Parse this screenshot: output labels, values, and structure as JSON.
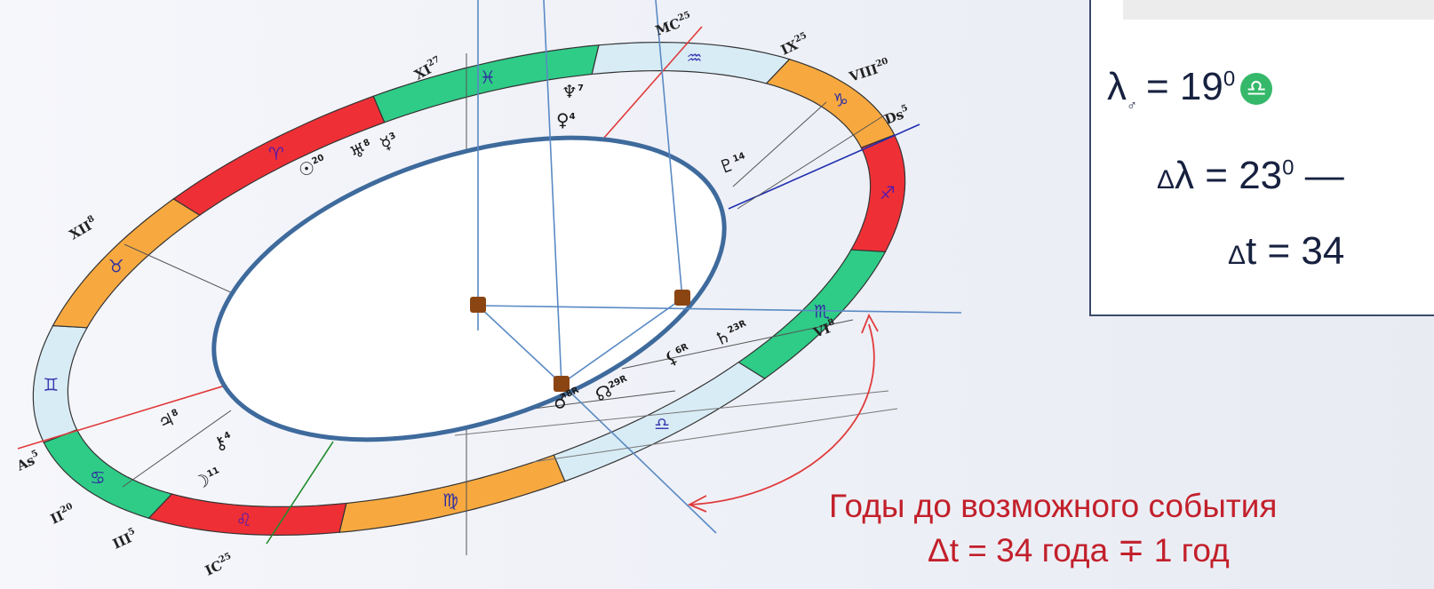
{
  "zodiac_signs": [
    {
      "name": "pisces",
      "glyph": "♓",
      "color": "#2ecc87"
    },
    {
      "name": "aquarius",
      "glyph": "♒",
      "color": "#d8ecf6"
    },
    {
      "name": "capricorn",
      "glyph": "♑",
      "color": "#f7a940"
    },
    {
      "name": "sagittarius",
      "glyph": "♐",
      "color": "#ee3036"
    },
    {
      "name": "scorpio",
      "glyph": "♏",
      "color": "#2ecc87"
    },
    {
      "name": "libra",
      "glyph": "♎",
      "color": "#d8ecf6"
    },
    {
      "name": "virgo",
      "glyph": "♍",
      "color": "#f7a940"
    },
    {
      "name": "leo",
      "glyph": "♌",
      "color": "#ee3036"
    },
    {
      "name": "cancer",
      "glyph": "♋",
      "color": "#2ecc87"
    },
    {
      "name": "gemini",
      "glyph": "♊",
      "color": "#d8ecf6"
    },
    {
      "name": "taurus",
      "glyph": "♉",
      "color": "#f7a940"
    },
    {
      "name": "aries",
      "glyph": "♈",
      "color": "#ee3036"
    }
  ],
  "house_labels": [
    {
      "name": "mc",
      "text": "MC",
      "sup": "25"
    },
    {
      "name": "ix",
      "text": "IX",
      "sup": "25"
    },
    {
      "name": "viii",
      "text": "VIII",
      "sup": "20"
    },
    {
      "name": "ds",
      "text": "Ds",
      "sup": "5"
    },
    {
      "name": "vi",
      "text": "VI",
      "sup": "8"
    },
    {
      "name": "xi",
      "text": "XI",
      "sup": "27"
    },
    {
      "name": "xii",
      "text": "XII",
      "sup": "8"
    },
    {
      "name": "as",
      "text": "As",
      "sup": "5"
    },
    {
      "name": "ii",
      "text": "II",
      "sup": "20"
    },
    {
      "name": "iii",
      "text": "III",
      "sup": "5"
    },
    {
      "name": "ic",
      "text": "IC",
      "sup": "25"
    }
  ],
  "planets": [
    {
      "name": "neptune",
      "glyph": "♆",
      "sup": "7"
    },
    {
      "name": "venus",
      "glyph": "♀",
      "sup": "4"
    },
    {
      "name": "pluto",
      "glyph": "♇",
      "sup": "14"
    },
    {
      "name": "sun",
      "glyph": "☉",
      "sup": "20"
    },
    {
      "name": "uranus",
      "glyph": "♅",
      "sup": "8"
    },
    {
      "name": "mercury",
      "glyph": "☿",
      "sup": "3"
    },
    {
      "name": "saturn",
      "glyph": "♄",
      "sup": "23R"
    },
    {
      "name": "lilith",
      "glyph": "⚸",
      "sup": "6R"
    },
    {
      "name": "mars",
      "glyph": "♂",
      "sup": "8R"
    },
    {
      "name": "node",
      "glyph": "☊",
      "sup": "29R"
    },
    {
      "name": "jupiter",
      "glyph": "♃",
      "sup": "8"
    },
    {
      "name": "chiron",
      "glyph": "⚷",
      "sup": "4"
    },
    {
      "name": "moon",
      "glyph": "☽",
      "sup": "11"
    }
  ],
  "formula": {
    "lambda": "λ",
    "mars_sub": "♂",
    "eq1": "=  19",
    "deg1": "0",
    "libra_glyph": "♎",
    "delta1": "Δ",
    "eq2": "λ = 23",
    "deg2": "0",
    "dash": " —",
    "delta2": "Δ",
    "eq3": "t = 34"
  },
  "caption": {
    "line1": "Годы до возможного события",
    "line2": "Δt = 34 года ∓ 1 год"
  },
  "colors": {
    "line_blue": "#5a8ac4",
    "line_red": "#e03a3a",
    "line_green": "#1f8a2a",
    "inner_ring": "#3e6a9c",
    "marker": "#8b4513",
    "caption_red": "#c2202b"
  }
}
